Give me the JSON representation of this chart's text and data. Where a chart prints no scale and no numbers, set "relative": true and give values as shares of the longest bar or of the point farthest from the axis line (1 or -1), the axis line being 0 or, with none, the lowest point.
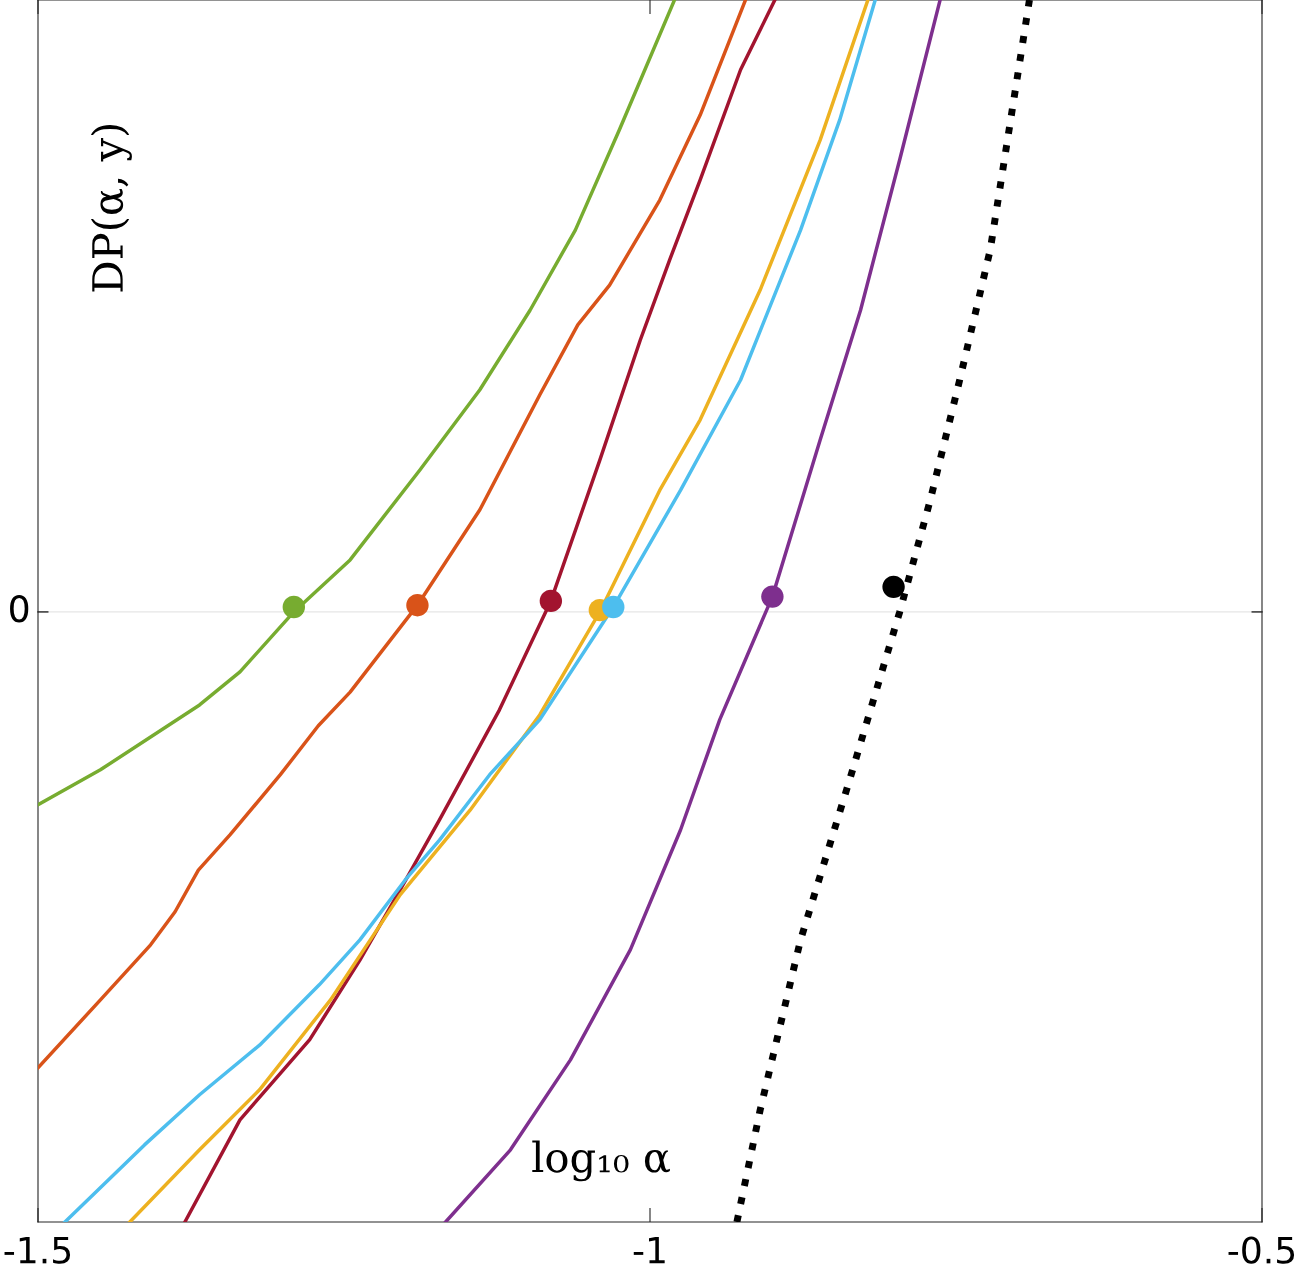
{
  "chart_data": {
    "type": "line",
    "relative": true,
    "xlabel": "log₁₀ α",
    "ylabel": "DP(α, y)",
    "xlim": [
      -1.5,
      -0.5
    ],
    "xticks": [
      -1.5,
      -1,
      -0.5
    ],
    "legend": false,
    "grid": false,
    "line_style": "solid",
    "marker": "none",
    "ref_lines": [
      {
        "axis": "y",
        "value": 0,
        "label": "0",
        "color": "#e6e6e6"
      }
    ],
    "series": [
      {
        "color": "#77ac30",
        "x": [
          -1.5,
          -1.449,
          -1.368,
          -1.335,
          -1.291,
          -1.245,
          -1.188,
          -1.139,
          -1.098,
          -1.061,
          -1.025,
          -0.98
        ],
        "values": [
          -0.315,
          -0.258,
          -0.152,
          -0.098,
          0,
          0.085,
          0.232,
          0.363,
          0.493,
          0.624,
          0.788,
          1.0
        ]
      },
      {
        "color": "#d95319",
        "x": [
          -1.5,
          -1.449,
          -1.408,
          -1.388,
          -1.369,
          -1.343,
          -1.302,
          -1.271,
          -1.245,
          -1.19,
          -1.139,
          -1.09,
          -1.059,
          -1.033,
          -0.992,
          -0.959,
          -0.922
        ],
        "values": [
          -0.745,
          -0.634,
          -0.544,
          -0.49,
          -0.422,
          -0.364,
          -0.266,
          -0.186,
          -0.131,
          0.011,
          0.167,
          0.355,
          0.469,
          0.534,
          0.673,
          0.812,
          1.0
        ]
      },
      {
        "color": "#a2142f",
        "x": [
          -1.38,
          -1.335,
          -1.278,
          -1.237,
          -1.204,
          -1.172,
          -1.123,
          -1.081,
          -1.041,
          -1.008,
          -0.984,
          -0.959,
          -0.926,
          -0.898
        ],
        "values": [
          -0.997,
          -0.83,
          -0.699,
          -0.569,
          -0.454,
          -0.34,
          -0.16,
          0.018,
          0.248,
          0.444,
          0.575,
          0.706,
          0.886,
          1.0
        ]
      },
      {
        "color": "#edb120",
        "x": [
          -1.425,
          -1.368,
          -1.319,
          -1.261,
          -1.204,
          -1.147,
          -1.09,
          -1.041,
          -0.992,
          -0.959,
          -0.91,
          -0.861,
          -0.822
        ],
        "values": [
          -0.997,
          -0.879,
          -0.781,
          -0.634,
          -0.462,
          -0.324,
          -0.168,
          0,
          0.199,
          0.314,
          0.526,
          0.771,
          1.0
        ]
      },
      {
        "color": "#4dbeee",
        "x": [
          -1.478,
          -1.413,
          -1.368,
          -1.319,
          -1.27,
          -1.237,
          -1.2,
          -1.172,
          -1.131,
          -1.09,
          -1.03,
          -0.975,
          -0.926,
          -0.877,
          -0.845,
          -0.816
        ],
        "values": [
          -0.997,
          -0.871,
          -0.789,
          -0.708,
          -0.609,
          -0.536,
          -0.438,
          -0.373,
          -0.266,
          -0.176,
          0.008,
          0.199,
          0.379,
          0.624,
          0.804,
          1.0
        ]
      },
      {
        "color": "#7e2f8e",
        "x": [
          -1.167,
          -1.114,
          -1.065,
          -1.016,
          -0.975,
          -0.943,
          -0.9,
          -0.861,
          -0.828,
          -0.796,
          -0.763
        ],
        "values": [
          -0.997,
          -0.879,
          -0.732,
          -0.552,
          -0.356,
          -0.176,
          0.025,
          0.281,
          0.493,
          0.739,
          1.0
        ]
      },
      {
        "color": "#000000",
        "line_style": "dotted",
        "x": [
          -0.929,
          -0.91,
          -0.877,
          -0.837,
          -0.796,
          -0.771,
          -0.747,
          -0.722,
          -0.69
        ],
        "values": [
          -0.997,
          -0.814,
          -0.536,
          -0.275,
          0,
          0.183,
          0.379,
          0.592,
          1.0
        ]
      },
      {
        "type": "scatter",
        "marker": "circle",
        "x": [
          -1.291,
          -1.19,
          -1.081,
          -1.041,
          -1.03,
          -0.9,
          -0.801
        ],
        "values": [
          0.008,
          0.011,
          0.018,
          0.003,
          0.008,
          0.025,
          0.041
        ],
        "colors": [
          "#77ac30",
          "#d95319",
          "#a2142f",
          "#edb120",
          "#4dbeee",
          "#7e2f8e",
          "#000000"
        ]
      }
    ]
  }
}
